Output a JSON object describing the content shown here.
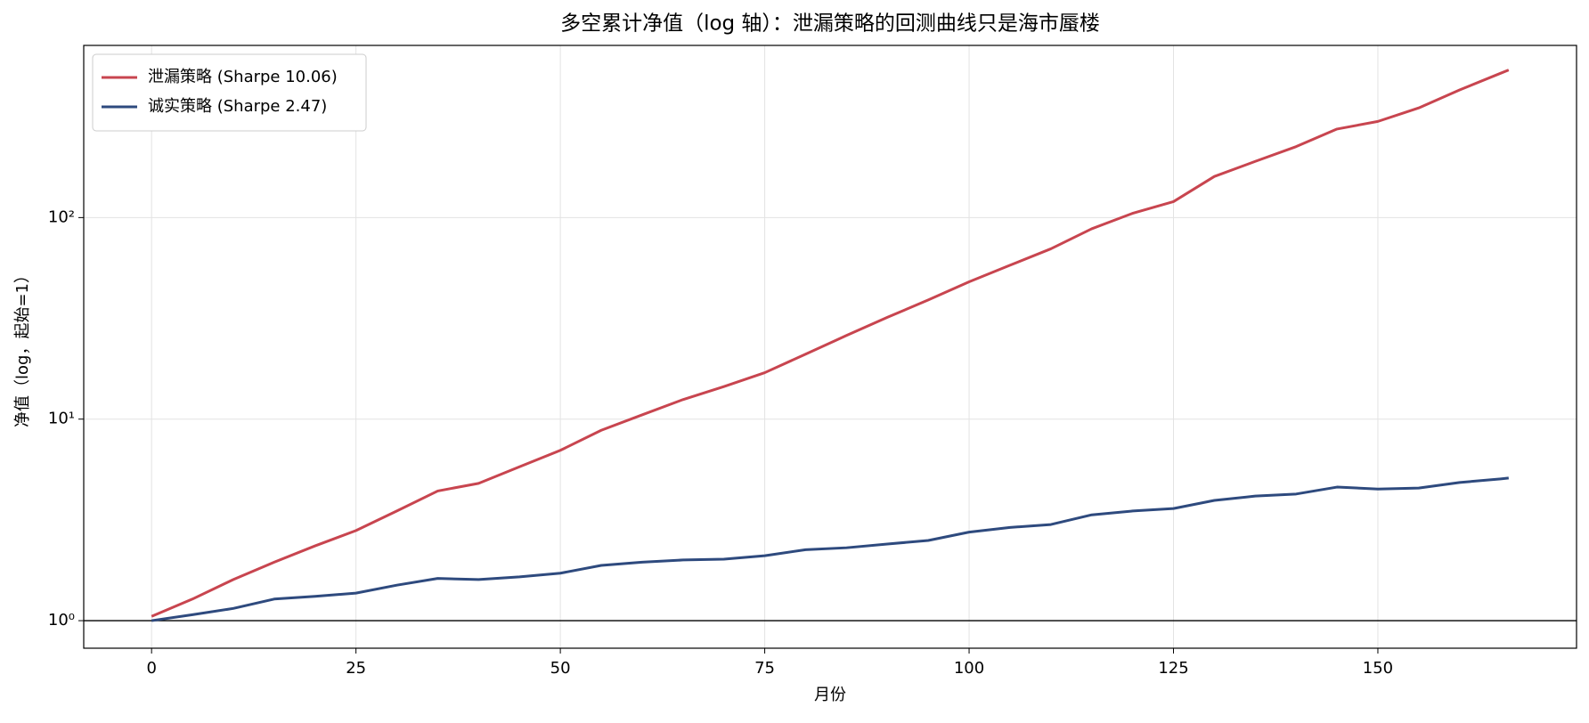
{
  "chart_data": {
    "type": "line",
    "title": "多空累计净值（log 轴）：泄漏策略的回测曲线只是海市蜃楼",
    "xlabel": "月份",
    "ylabel": "净值（log，起始=1）",
    "x": [
      0,
      5,
      10,
      15,
      20,
      25,
      30,
      35,
      40,
      45,
      50,
      55,
      60,
      65,
      70,
      75,
      80,
      85,
      90,
      95,
      100,
      105,
      110,
      115,
      120,
      125,
      130,
      135,
      140,
      145,
      150,
      155,
      160,
      165,
      166
    ],
    "series": [
      {
        "name": "泄漏策略 (Sharpe 10.06)",
        "color": "#c8454f",
        "values": [
          1.05,
          1.28,
          1.6,
          1.95,
          2.35,
          2.8,
          3.5,
          4.4,
          4.8,
          5.8,
          7.0,
          8.8,
          10.5,
          12.5,
          14.5,
          17,
          21,
          26,
          32,
          39,
          48,
          58,
          70,
          88,
          105,
          120,
          160,
          190,
          225,
          275,
          300,
          350,
          430,
          520,
          540
        ]
      },
      {
        "name": "诚实策略 (Sharpe 2.47)",
        "color": "#2e4a7e",
        "values": [
          1.0,
          1.07,
          1.15,
          1.28,
          1.32,
          1.37,
          1.5,
          1.62,
          1.6,
          1.65,
          1.72,
          1.88,
          1.95,
          2.0,
          2.02,
          2.1,
          2.25,
          2.3,
          2.4,
          2.5,
          2.75,
          2.9,
          3.0,
          3.35,
          3.5,
          3.6,
          3.95,
          4.15,
          4.25,
          4.6,
          4.5,
          4.55,
          4.85,
          5.05,
          5.1
        ]
      }
    ],
    "xlim": [
      -8.3,
      174.3
    ],
    "xticks": [
      0,
      25,
      50,
      75,
      100,
      125,
      150
    ],
    "ylim": [
      0.73,
      715
    ],
    "yscale": "log",
    "yticks": [
      {
        "value": 1,
        "label": "10⁰"
      },
      {
        "value": 10,
        "label": "10¹"
      },
      {
        "value": 100,
        "label": "10²"
      }
    ],
    "hline": 1,
    "grid": true,
    "legend": "upper-left"
  }
}
